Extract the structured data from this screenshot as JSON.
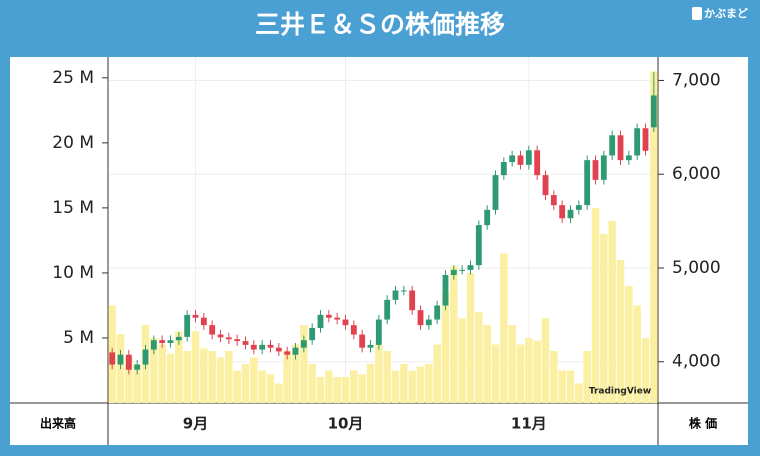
{
  "chart_data": {
    "type": "candlestick",
    "title": "三井Ｅ＆Ｓの株価推移",
    "logo": "かぶまど",
    "watermark": "TradingView",
    "ylabel": "出来高",
    "y2label": "株 価",
    "categories": [
      null,
      null,
      null,
      null,
      null,
      null,
      null,
      null,
      null,
      null,
      "9月",
      null,
      null,
      null,
      null,
      null,
      null,
      null,
      null,
      null,
      null,
      null,
      null,
      null,
      null,
      null,
      null,
      null,
      "10月",
      null,
      null,
      null,
      null,
      null,
      null,
      null,
      null,
      null,
      null,
      null,
      null,
      null,
      null,
      null,
      null,
      null,
      null,
      null,
      null,
      null,
      "11月",
      null,
      null,
      null,
      null,
      null,
      null,
      null,
      null,
      null,
      null,
      null,
      null,
      null,
      null,
      null
    ],
    "open": [
      4100,
      3970,
      4075,
      3915,
      3970,
      4130,
      4230,
      4200,
      4230,
      4265,
      4500,
      4470,
      4390,
      4290,
      4260,
      4240,
      4220,
      4180,
      4130,
      4180,
      4150,
      4110,
      4075,
      4150,
      4230,
      4360,
      4500,
      4470,
      4450,
      4390,
      4290,
      4150,
      4180,
      4450,
      4660,
      4760,
      4760,
      4550,
      4390,
      4450,
      4600,
      4925,
      4980,
      4980,
      5030,
      5457,
      5620,
      5990,
      6130,
      6200,
      6100,
      6255,
      5990,
      5777,
      5670,
      5530,
      5620,
      5670,
      6150,
      5940,
      6200,
      6415,
      6150,
      6200,
      6490,
      6500
    ],
    "high": [
      4150,
      4125,
      4125,
      4020,
      4180,
      4280,
      4280,
      4280,
      4315,
      4550,
      4550,
      4520,
      4440,
      4340,
      4310,
      4290,
      4270,
      4230,
      4230,
      4230,
      4200,
      4160,
      4200,
      4280,
      4410,
      4550,
      4550,
      4520,
      4500,
      4440,
      4340,
      4230,
      4500,
      4710,
      4810,
      4810,
      4810,
      4600,
      4500,
      4650,
      4975,
      5030,
      5030,
      5080,
      5507,
      5670,
      6040,
      6180,
      6250,
      6250,
      6305,
      6305,
      6040,
      5827,
      5720,
      5670,
      5720,
      6200,
      6200,
      6250,
      6465,
      6465,
      6250,
      6540,
      6540,
      7090
    ],
    "low": [
      3920,
      3920,
      3865,
      3865,
      3920,
      4080,
      4150,
      4150,
      4180,
      4215,
      4420,
      4340,
      4240,
      4210,
      4190,
      4170,
      4130,
      4080,
      4080,
      4100,
      4060,
      4025,
      4025,
      4100,
      4180,
      4310,
      4420,
      4400,
      4340,
      4240,
      4100,
      4100,
      4130,
      4400,
      4610,
      4710,
      4500,
      4340,
      4340,
      4400,
      4550,
      4875,
      4930,
      4930,
      4980,
      5407,
      5570,
      5940,
      6080,
      6050,
      6050,
      5940,
      5727,
      5620,
      5480,
      5480,
      5570,
      5620,
      5890,
      5890,
      6150,
      6100,
      6100,
      6150,
      6200,
      6450
    ],
    "close": [
      3970,
      4075,
      3915,
      3970,
      4130,
      4230,
      4200,
      4230,
      4265,
      4500,
      4470,
      4390,
      4290,
      4260,
      4240,
      4220,
      4180,
      4130,
      4180,
      4150,
      4110,
      4075,
      4150,
      4230,
      4360,
      4500,
      4470,
      4450,
      4390,
      4290,
      4150,
      4180,
      4450,
      4660,
      4760,
      4760,
      4550,
      4390,
      4450,
      4600,
      4925,
      4980,
      4980,
      5030,
      5457,
      5620,
      5990,
      6130,
      6200,
      6100,
      6255,
      5990,
      5777,
      5670,
      5530,
      5620,
      5670,
      6150,
      5940,
      6200,
      6415,
      6150,
      6200,
      6490,
      6250,
      6840
    ],
    "volume": [
      7.5,
      5.3,
      3.5,
      3.0,
      6.0,
      5.0,
      4.5,
      3.8,
      5.5,
      4.0,
      5.5,
      4.2,
      4.0,
      3.5,
      4.0,
      2.5,
      3.0,
      3.5,
      2.5,
      2.2,
      1.5,
      4.0,
      4.5,
      6.0,
      3.0,
      2.0,
      2.5,
      2.0,
      2.0,
      2.5,
      2.2,
      3.0,
      4.5,
      4.0,
      2.5,
      3.0,
      2.5,
      2.8,
      3.0,
      4.5,
      8.5,
      10.5,
      6.5,
      10.0,
      7.0,
      6.0,
      4.5,
      11.5,
      6.0,
      4.5,
      5.0,
      4.8,
      6.5,
      4.0,
      2.5,
      2.5,
      1.5,
      4.0,
      15.0,
      13.0,
      14.0,
      11.0,
      9.0,
      7.5,
      5.0,
      25.5
    ],
    "ylim": [
      0,
      26.6
    ],
    "yticks": [
      {
        "value": 5,
        "label": "5 M"
      },
      {
        "value": 10,
        "label": "10 M"
      },
      {
        "value": 15,
        "label": "15 M"
      },
      {
        "value": 20,
        "label": "20 M"
      },
      {
        "value": 25,
        "label": "25 M"
      }
    ],
    "y2lim": [
      3560,
      7250
    ],
    "y2ticks": [
      {
        "value": 4000,
        "label": "4,000"
      },
      {
        "value": 5000,
        "label": "5,000"
      },
      {
        "value": 6000,
        "label": "6,000"
      },
      {
        "value": 7000,
        "label": "7,000"
      }
    ],
    "up_color": "#2f9a72",
    "down_color": "#e0434f",
    "volume_color": "#fbf0a2",
    "grid": true
  }
}
